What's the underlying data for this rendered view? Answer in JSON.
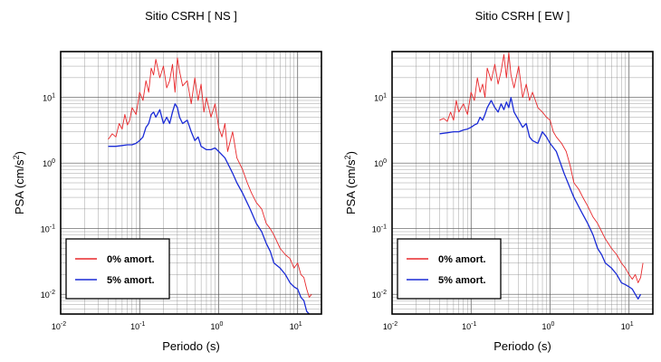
{
  "chart_data": [
    {
      "type": "line",
      "title": "Sitio CSRH [ NS ]",
      "xlabel": "Periodo (s)",
      "ylabel_main": "PSA (cm/s",
      "ylabel_sup": "2",
      "ylabel_close": ")",
      "xscale": "log",
      "yscale": "log",
      "xlim": [
        0.01,
        20
      ],
      "ylim": [
        0.005,
        50
      ],
      "grid": true,
      "legend_position": "bottom-left",
      "x_ticks": [
        {
          "base": "10",
          "exp": "-2",
          "value": 0.01
        },
        {
          "base": "10",
          "exp": "-1",
          "value": 0.1
        },
        {
          "base": "10",
          "exp": "0",
          "value": 1
        },
        {
          "base": "10",
          "exp": "1",
          "value": 10
        }
      ],
      "y_ticks": [
        {
          "base": "10",
          "exp": "-2",
          "value": 0.01
        },
        {
          "base": "10",
          "exp": "-1",
          "value": 0.1
        },
        {
          "base": "10",
          "exp": "0",
          "value": 1
        },
        {
          "base": "10",
          "exp": "1",
          "value": 10
        }
      ],
      "series": [
        {
          "name": "0% amort.",
          "color": "#e8282b",
          "x": [
            0.04,
            0.045,
            0.05,
            0.055,
            0.06,
            0.065,
            0.07,
            0.075,
            0.08,
            0.09,
            0.1,
            0.11,
            0.12,
            0.13,
            0.14,
            0.15,
            0.16,
            0.18,
            0.2,
            0.22,
            0.24,
            0.26,
            0.28,
            0.3,
            0.32,
            0.35,
            0.4,
            0.45,
            0.5,
            0.55,
            0.6,
            0.65,
            0.7,
            0.8,
            0.9,
            1.0,
            1.1,
            1.2,
            1.3,
            1.5,
            1.7,
            2.0,
            2.3,
            2.6,
            3.0,
            3.5,
            4.0,
            4.5,
            5.0,
            6.0,
            7.0,
            8.0,
            9.0,
            10.0,
            11.0,
            12.0,
            13.0,
            14.0,
            15.0
          ],
          "values": [
            2.3,
            2.8,
            2.5,
            4.0,
            3.3,
            5.5,
            3.8,
            4.5,
            7.0,
            5.5,
            12.0,
            9.0,
            18.0,
            12.0,
            28.0,
            22.0,
            38.0,
            20.0,
            30.0,
            14.0,
            18.0,
            32.0,
            12.0,
            40.0,
            25.0,
            15.0,
            18.0,
            8.0,
            20.0,
            9.0,
            16.0,
            6.0,
            10.0,
            5.0,
            8.0,
            3.5,
            2.5,
            4.0,
            1.5,
            3.0,
            1.2,
            0.8,
            0.5,
            0.35,
            0.25,
            0.2,
            0.12,
            0.1,
            0.08,
            0.05,
            0.04,
            0.035,
            0.025,
            0.03,
            0.02,
            0.018,
            0.012,
            0.009,
            0.01
          ]
        },
        {
          "name": "5% amort.",
          "color": "#1a2bd6",
          "x": [
            0.04,
            0.05,
            0.06,
            0.07,
            0.08,
            0.09,
            0.1,
            0.11,
            0.12,
            0.13,
            0.14,
            0.15,
            0.16,
            0.18,
            0.2,
            0.22,
            0.24,
            0.26,
            0.28,
            0.3,
            0.32,
            0.35,
            0.4,
            0.45,
            0.5,
            0.55,
            0.6,
            0.7,
            0.8,
            0.9,
            1.0,
            1.2,
            1.5,
            1.7,
            2.0,
            2.5,
            3.0,
            3.5,
            4.0,
            4.5,
            5.0,
            6.0,
            7.0,
            8.0,
            9.0,
            10.0,
            11.0,
            12.0,
            13.0,
            14.0
          ],
          "values": [
            1.8,
            1.8,
            1.85,
            1.9,
            1.9,
            2.0,
            2.2,
            2.5,
            3.5,
            4.0,
            5.5,
            6.0,
            5.0,
            6.5,
            4.0,
            5.0,
            4.0,
            6.0,
            8.0,
            7.0,
            5.0,
            4.0,
            4.5,
            3.0,
            2.2,
            2.5,
            1.8,
            1.6,
            1.6,
            1.7,
            1.5,
            1.2,
            0.7,
            0.5,
            0.35,
            0.2,
            0.12,
            0.09,
            0.06,
            0.045,
            0.03,
            0.025,
            0.02,
            0.015,
            0.013,
            0.012,
            0.009,
            0.008,
            0.0055,
            0.005
          ]
        }
      ]
    },
    {
      "type": "line",
      "title": "Sitio CSRH [ EW ]",
      "xlabel": "Periodo (s)",
      "ylabel_main": "PSA (cm/s",
      "ylabel_sup": "2",
      "ylabel_close": ")",
      "xscale": "log",
      "yscale": "log",
      "xlim": [
        0.01,
        20
      ],
      "ylim": [
        0.005,
        50
      ],
      "grid": true,
      "legend_position": "bottom-left",
      "x_ticks": [
        {
          "base": "10",
          "exp": "-2",
          "value": 0.01
        },
        {
          "base": "10",
          "exp": "-1",
          "value": 0.1
        },
        {
          "base": "10",
          "exp": "0",
          "value": 1
        },
        {
          "base": "10",
          "exp": "1",
          "value": 10
        }
      ],
      "y_ticks": [
        {
          "base": "10",
          "exp": "-2",
          "value": 0.01
        },
        {
          "base": "10",
          "exp": "-1",
          "value": 0.1
        },
        {
          "base": "10",
          "exp": "0",
          "value": 1
        },
        {
          "base": "10",
          "exp": "1",
          "value": 10
        }
      ],
      "series": [
        {
          "name": "0% amort.",
          "color": "#e8282b",
          "x": [
            0.04,
            0.045,
            0.05,
            0.055,
            0.06,
            0.065,
            0.07,
            0.08,
            0.09,
            0.1,
            0.11,
            0.12,
            0.13,
            0.14,
            0.15,
            0.16,
            0.18,
            0.2,
            0.22,
            0.24,
            0.26,
            0.28,
            0.3,
            0.32,
            0.35,
            0.4,
            0.45,
            0.5,
            0.55,
            0.6,
            0.7,
            0.8,
            0.9,
            1.0,
            1.1,
            1.2,
            1.4,
            1.6,
            1.8,
            2.0,
            2.3,
            2.6,
            3.0,
            3.5,
            4.0,
            4.5,
            5.0,
            6.0,
            7.0,
            8.0,
            9.0,
            10.0,
            11.0,
            12.0,
            13.0,
            14.0,
            15.0
          ],
          "values": [
            4.5,
            4.8,
            4.3,
            6.0,
            4.5,
            9.0,
            6.0,
            8.0,
            5.5,
            12.0,
            9.0,
            20.0,
            12.0,
            16.0,
            10.0,
            28.0,
            18.0,
            32.0,
            16.0,
            25.0,
            45.0,
            20.0,
            48.0,
            22.0,
            14.0,
            30.0,
            10.0,
            16.0,
            9.0,
            12.0,
            7.0,
            6.0,
            5.0,
            4.5,
            3.0,
            2.5,
            2.0,
            1.5,
            0.9,
            0.5,
            0.4,
            0.3,
            0.22,
            0.15,
            0.12,
            0.09,
            0.07,
            0.05,
            0.04,
            0.03,
            0.025,
            0.02,
            0.017,
            0.02,
            0.015,
            0.018,
            0.03
          ]
        },
        {
          "name": "5% amort.",
          "color": "#1a2bd6",
          "x": [
            0.04,
            0.05,
            0.06,
            0.07,
            0.08,
            0.09,
            0.1,
            0.11,
            0.12,
            0.13,
            0.14,
            0.15,
            0.16,
            0.18,
            0.2,
            0.22,
            0.24,
            0.26,
            0.28,
            0.3,
            0.32,
            0.35,
            0.4,
            0.45,
            0.5,
            0.55,
            0.6,
            0.7,
            0.8,
            0.9,
            1.0,
            1.2,
            1.5,
            2.0,
            2.5,
            3.0,
            3.5,
            4.0,
            4.5,
            5.0,
            6.0,
            7.0,
            8.0,
            9.0,
            10.0,
            11.0,
            12.0,
            13.0,
            14.0
          ],
          "values": [
            2.8,
            2.9,
            3.0,
            3.0,
            3.2,
            3.3,
            3.5,
            3.8,
            4.0,
            5.0,
            4.5,
            5.5,
            7.0,
            9.0,
            7.0,
            6.0,
            8.0,
            6.5,
            8.5,
            7.0,
            10.0,
            6.0,
            4.5,
            3.5,
            4.0,
            2.5,
            2.2,
            2.0,
            3.0,
            2.5,
            2.0,
            1.5,
            0.7,
            0.3,
            0.18,
            0.12,
            0.08,
            0.05,
            0.04,
            0.03,
            0.025,
            0.02,
            0.015,
            0.014,
            0.013,
            0.012,
            0.01,
            0.0085,
            0.01
          ]
        }
      ]
    }
  ]
}
